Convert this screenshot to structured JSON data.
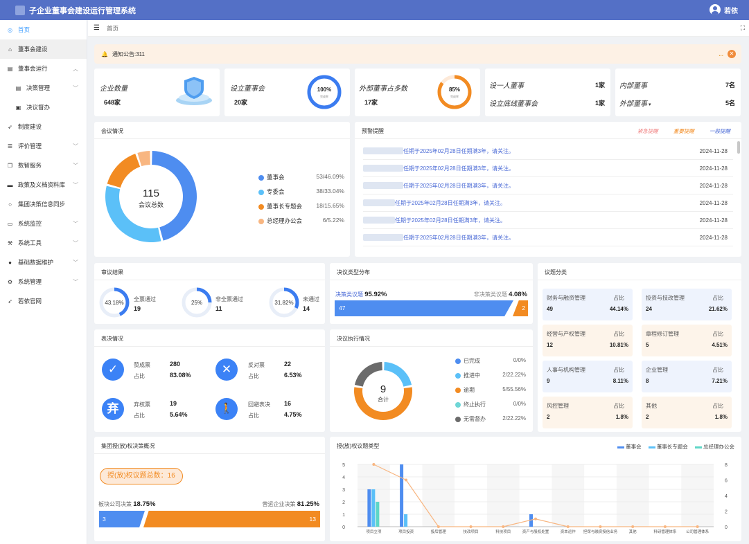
{
  "app": {
    "title": "子企业董事会建设运行管理系统",
    "user": "若依"
  },
  "sidebar": {
    "items": [
      {
        "label": "首页",
        "icon": "home-icon"
      },
      {
        "label": "董事会建设",
        "icon": "building-icon"
      },
      {
        "label": "董事会运行",
        "icon": "folder-icon"
      },
      {
        "label": "决策管理",
        "icon": "folder-icon"
      },
      {
        "label": "决议督办",
        "icon": "document-icon"
      },
      {
        "label": "制度建设",
        "icon": "send-icon"
      },
      {
        "label": "评价管理",
        "icon": "list-icon"
      },
      {
        "label": "数智服务",
        "icon": "copy-icon"
      },
      {
        "label": "政策及义档资料库",
        "icon": "chat-icon"
      },
      {
        "label": "集团决策信息同步",
        "icon": "sync-icon"
      },
      {
        "label": "系统监控",
        "icon": "monitor-icon"
      },
      {
        "label": "系统工具",
        "icon": "tool-icon"
      },
      {
        "label": "基础数据维护",
        "icon": "user-icon"
      },
      {
        "label": "系统管理",
        "icon": "gear-icon"
      },
      {
        "label": "若依官网",
        "icon": "send-icon"
      }
    ]
  },
  "breadcrumb": {
    "home": "首页"
  },
  "notice": {
    "text": "通知公告:311",
    "more": "..."
  },
  "stats": {
    "company_count": {
      "label": "企业数量",
      "value": "648家"
    },
    "board_set": {
      "label": "设立董事会",
      "value": "20家",
      "pct": "100%",
      "pct_sub": "完成率",
      "fraction": 1.0
    },
    "external_majority": {
      "label": "外部董事占多数",
      "value": "17家",
      "pct": "85%",
      "pct_sub": "完成率",
      "fraction": 0.85
    },
    "single_director": {
      "label": "设一人董事",
      "value": "1家"
    },
    "bottom_board": {
      "label": "设立底线董事会",
      "value": "1家"
    },
    "internal_director": {
      "label": "内部董事",
      "value": "7名"
    },
    "external_director": {
      "label": "外部董事",
      "value": "5名"
    }
  },
  "meeting": {
    "title": "会议情况",
    "total": "115",
    "total_label": "会议总数",
    "items": [
      {
        "name": "董事会",
        "value": "53/46.09%",
        "count": 53,
        "color": "#4e8df0"
      },
      {
        "name": "专委会",
        "value": "38/33.04%",
        "count": 38,
        "color": "#5bc0f8"
      },
      {
        "name": "董事长专题会",
        "value": "18/15.65%",
        "count": 18,
        "color": "#f28b22"
      },
      {
        "name": "总经理办公会",
        "value": "6/5.22%",
        "count": 6,
        "color": "#f8b681"
      }
    ]
  },
  "warning": {
    "title": "预警提醒",
    "tabs": [
      "紧急提醒",
      "重要提醒",
      "一般提醒"
    ],
    "tab_colors": [
      "#f08080",
      "#f28b22",
      "#4a6ad6"
    ],
    "rows": [
      {
        "text": "任期于2025年02月28日任期满3年，请关注。",
        "date": "2024-11-28"
      },
      {
        "text": "任期于2025年02月28日任期满3年，请关注。",
        "date": "2024-11-28"
      },
      {
        "text": "任期于2025年02月28日任期满3年，请关注。",
        "date": "2024-11-28"
      },
      {
        "text": "任期于2025年02月28日任期满3年，请关注。",
        "date": "2024-11-28"
      },
      {
        "text": "任期于2025年02月28日任期满3年，请关注。",
        "date": "2024-11-28"
      },
      {
        "text": "任期于2025年02月28日任期满3年，请关注。",
        "date": "2024-11-28"
      }
    ]
  },
  "review": {
    "title": "审议结果",
    "items": [
      {
        "pct": "43.18%",
        "label": "全票通过",
        "count": "19",
        "fraction": 0.4318
      },
      {
        "pct": "25%",
        "label": "非全票通过",
        "count": "11",
        "fraction": 0.25
      },
      {
        "pct": "31.82%",
        "label": "未通过",
        "count": "14",
        "fraction": 0.3182
      }
    ]
  },
  "resolution_type": {
    "title": "决议类型分布",
    "left_label": "决策类议题",
    "left_pct": "95.92%",
    "left_count": "47",
    "right_label": "非决策类议题",
    "right_pct": "4.08%",
    "right_count": "2"
  },
  "topic_class": {
    "title": "议题分类",
    "pct_label": "占比",
    "items": [
      {
        "name": "财务与融资管理",
        "count": "49",
        "pct": "44.14%"
      },
      {
        "name": "投资与技改管理",
        "count": "24",
        "pct": "21.62%"
      },
      {
        "name": "经营与产权管理",
        "count": "12",
        "pct": "10.81%"
      },
      {
        "name": "章程修订管理",
        "count": "5",
        "pct": "4.51%"
      },
      {
        "name": "人事与机构管理",
        "count": "9",
        "pct": "8.11%"
      },
      {
        "name": "企业管理",
        "count": "8",
        "pct": "7.21%"
      },
      {
        "name": "风控管理",
        "count": "2",
        "pct": "1.8%"
      },
      {
        "name": "其他",
        "count": "2",
        "pct": "1.8%"
      }
    ]
  },
  "vote": {
    "title": "表决情况",
    "pct_label": "占比",
    "items": [
      {
        "label": "赞成票",
        "count": "280",
        "pct": "83.08%",
        "icon": "check-icon",
        "glyph": "✓"
      },
      {
        "label": "反对票",
        "count": "22",
        "pct": "6.53%",
        "icon": "cross-icon",
        "glyph": "✕"
      },
      {
        "label": "弃权票",
        "count": "19",
        "pct": "5.64%",
        "icon": "abstain-icon",
        "glyph": "弃"
      },
      {
        "label": "回避表决",
        "count": "16",
        "pct": "4.75%",
        "icon": "walk-icon",
        "glyph": "🚶"
      }
    ]
  },
  "execution": {
    "title": "决议执行情况",
    "total": "9",
    "total_label": "合计",
    "items": [
      {
        "name": "已完成",
        "value": "0/0%",
        "count": 0,
        "color": "#4e8df0"
      },
      {
        "name": "推进中",
        "value": "2/22.22%",
        "count": 2,
        "color": "#5bc0f8"
      },
      {
        "name": "逾期",
        "value": "5/55.56%",
        "count": 5,
        "color": "#f28b22"
      },
      {
        "name": "终止执行",
        "value": "0/0%",
        "count": 0,
        "color": "#6fd6d6"
      },
      {
        "name": "无需督办",
        "value": "2/22.22%",
        "count": 2,
        "color": "#6b6b6b"
      }
    ]
  },
  "group_auth": {
    "title": "集团授(放)权决策概况",
    "badge": "授(放)权议题总数：16",
    "left_label": "板块公司决策",
    "left_pct": "18.75%",
    "left_count": "3",
    "right_label": "营运企业决策",
    "right_pct": "81.25%",
    "right_count": "13"
  },
  "chart_data": {
    "type": "bar",
    "title": "授(放)权议题类型",
    "categories": [
      "项目立项",
      "项目投资",
      "投后管理",
      "技改项目",
      "科技项目",
      "资产与股权处置",
      "资本运作",
      "担保与融资授信业务",
      "其他",
      "科研管理体系",
      "公司管理体系"
    ],
    "series": [
      {
        "name": "董事会",
        "type": "bar",
        "color": "#4e8df0",
        "values": [
          3,
          5,
          0,
          0,
          0,
          1,
          0,
          0,
          0,
          0,
          0
        ]
      },
      {
        "name": "董事长专题会",
        "type": "bar",
        "color": "#5bc0f8",
        "values": [
          3,
          1,
          0,
          0,
          0,
          0,
          0,
          0,
          0,
          0,
          0
        ]
      },
      {
        "name": "总经理办公会",
        "type": "bar",
        "color": "#5ed6c6",
        "values": [
          2,
          0,
          0,
          0,
          0,
          0,
          0,
          0,
          0,
          0,
          0
        ]
      },
      {
        "type": "line",
        "color": "#f8b681",
        "axis": "right",
        "values": [
          8,
          6,
          0,
          0,
          0,
          1,
          0,
          0,
          0,
          0,
          0
        ]
      }
    ],
    "y_left": {
      "ticks": [
        "0",
        "1",
        "2",
        "3",
        "4",
        "5"
      ],
      "max": 5
    },
    "y_right": {
      "ticks": [
        "0",
        "2",
        "4",
        "6",
        "8"
      ],
      "max": 8
    }
  }
}
